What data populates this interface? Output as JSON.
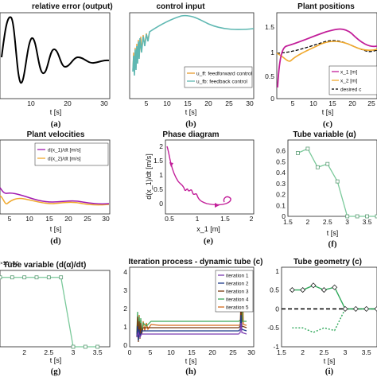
{
  "panels": [
    {
      "id": "a",
      "title": "relative error (output)",
      "xlabel": "t [s]",
      "ylabel": "",
      "label": "(a)",
      "xticks": [
        "10",
        "20",
        "30"
      ],
      "yticks": [],
      "xlim": [
        0,
        30
      ],
      "ylim": [
        -1,
        1
      ]
    },
    {
      "id": "b",
      "title": "control input",
      "xlabel": "t [s]",
      "ylabel": "",
      "label": "(b)",
      "xticks": [
        "5",
        "10",
        "15",
        "20",
        "25",
        "30"
      ],
      "yticks": [],
      "xlim": [
        0,
        30
      ],
      "ylim": [
        -1,
        1
      ],
      "legend": [
        "u_ff: feedforward control",
        "u_fb: feedback control"
      ]
    },
    {
      "id": "c",
      "title": "Plant positions",
      "xlabel": "t [s]",
      "ylabel": "",
      "label": "(c)",
      "xticks": [
        "5",
        "10",
        "15",
        "20",
        "25"
      ],
      "yticks": [
        "1.5",
        "1",
        "0.5",
        "0"
      ],
      "xlim": [
        0,
        28
      ],
      "ylim": [
        0,
        1.8
      ],
      "legend": [
        "x_1 [m]",
        "x_2 [m]",
        "desired c"
      ]
    },
    {
      "id": "d",
      "title": "Plant velocities",
      "xlabel": "t [s]",
      "ylabel": "",
      "label": "(d)",
      "xticks": [
        "5",
        "10",
        "15",
        "20",
        "25",
        "30"
      ],
      "yticks": [],
      "xlim": [
        2,
        30
      ],
      "ylim": [
        -1,
        1
      ],
      "legend": [
        "d(x_1)/dt [m/s]",
        "d(x_2)/dt [m/s]"
      ]
    },
    {
      "id": "e",
      "title": "Phase diagram",
      "xlabel": "x_1 [m]",
      "ylabel": "d(x_1)/dt [m/s]",
      "label": "(e)",
      "xticks": [
        "0.5",
        "1",
        "1.5",
        "2"
      ],
      "yticks": [
        "2",
        "1.5",
        "1",
        "0.5",
        "0"
      ],
      "xlim": [
        0.5,
        2
      ],
      "ylim": [
        -0.2,
        2.5
      ]
    },
    {
      "id": "f",
      "title": "Tube variable (α)",
      "xlabel": "t [s]",
      "ylabel": "",
      "label": "(f)",
      "xticks": [
        "1.5",
        "2",
        "2.5",
        "3",
        "3.5"
      ],
      "yticks": [
        "0.6",
        "0.5",
        "0.4",
        "0.3",
        "0.2",
        "0.1",
        "0"
      ],
      "xlim": [
        1.5,
        3.75
      ],
      "ylim": [
        0,
        0.7
      ]
    },
    {
      "id": "g",
      "title": "Tube variable (d(α)/dt)",
      "xlabel": "t [s]",
      "ylabel": "",
      "label": "(g)",
      "xticks": [
        "2",
        "2.5",
        "3",
        "3.5"
      ],
      "yticks": [],
      "xlim": [
        1.5,
        3.75
      ],
      "ylim": [
        -1,
        0.1
      ],
      "exponent": "×10^-10"
    },
    {
      "id": "h",
      "title": "Iteration process - dynamic tube (c)",
      "xlabel": "t [s]",
      "ylabel": "",
      "label": "(h)",
      "xticks": [
        "0",
        "5",
        "10",
        "15",
        "20",
        "25",
        "30"
      ],
      "yticks": [
        "4",
        "3",
        "2",
        "1",
        "0"
      ],
      "xlim": [
        0,
        30
      ],
      "ylim": [
        0,
        4
      ],
      "legend": [
        "iteration 1",
        "iteration 2",
        "iteration 3",
        "iteration 4",
        "iteration 5"
      ]
    },
    {
      "id": "i",
      "title": "Tube geometry (c)",
      "xlabel": "t [s]",
      "ylabel": "",
      "label": "(i)",
      "xticks": [
        "1.5",
        "2",
        "2.5",
        "3",
        "3.5"
      ],
      "yticks": [
        "1",
        "0.5",
        "0",
        "-0.5",
        "-1"
      ],
      "xlim": [
        1.5,
        3.75
      ],
      "ylim": [
        -1,
        1.1
      ]
    }
  ],
  "chart_data": [
    {
      "type": "line",
      "panel": "f",
      "title": "Tube variable (α)",
      "xlabel": "t [s]",
      "series": [
        {
          "values_x": [
            1.75,
            2.0,
            2.25,
            2.5,
            2.75,
            3.0,
            3.25,
            3.5,
            3.75
          ],
          "values_y": [
            0.58,
            0.62,
            0.45,
            0.48,
            0.32,
            0.0,
            0.0,
            0.0,
            0.0
          ]
        }
      ],
      "ylim": [
        0,
        0.7
      ],
      "xlim": [
        1.5,
        3.75
      ]
    },
    {
      "type": "line",
      "panel": "g",
      "title": "Tube variable (d(α)/dt)",
      "xlabel": "t [s]",
      "series": [
        {
          "values_x": [
            1.5,
            1.75,
            2.0,
            2.25,
            2.5,
            2.75,
            3.0,
            3.25,
            3.5
          ],
          "values_y": [
            0,
            0,
            0,
            0,
            0,
            0,
            -1,
            -1,
            -1
          ]
        }
      ],
      "ylim": [
        -1,
        0.1
      ],
      "xlim": [
        1.5,
        3.75
      ]
    },
    {
      "type": "line",
      "panel": "i",
      "title": "Tube geometry (c)",
      "xlabel": "t [s]",
      "series": [
        {
          "values_x": [
            1.75,
            2.0,
            2.25,
            2.5,
            2.75,
            3.0,
            3.25,
            3.5,
            3.75
          ],
          "values_y": [
            0.5,
            0.5,
            0.62,
            0.5,
            0.57,
            0.0,
            0.0,
            0.0,
            0.0
          ]
        },
        {
          "values_x": [
            1.75,
            2.0,
            2.25,
            2.5,
            2.75,
            3.0,
            3.25,
            3.5,
            3.75
          ],
          "values_y": [
            -0.5,
            -0.5,
            -0.62,
            -0.5,
            -0.57,
            0.0,
            0.0,
            0.0,
            0.0
          ]
        },
        {
          "values_x": [
            1.5,
            3.75
          ],
          "values_y": [
            0,
            0
          ]
        }
      ],
      "ylim": [
        -1,
        1.1
      ],
      "xlim": [
        1.5,
        3.75
      ]
    },
    {
      "type": "line",
      "panel": "c",
      "title": "Plant positions",
      "xlabel": "t [s]",
      "series": [
        {
          "name": "x_1 [m]",
          "values_x": [
            0,
            1,
            3,
            6,
            10,
            15,
            20,
            25,
            28
          ],
          "values_y": [
            0.3,
            1.0,
            1.2,
            1.3,
            1.45,
            1.7,
            1.4,
            1.15,
            1.2
          ]
        },
        {
          "name": "x_2 [m]",
          "values_x": [
            0,
            2,
            4,
            6,
            10,
            15,
            20,
            25,
            28
          ],
          "values_y": [
            1.0,
            0.88,
            1.0,
            1.05,
            1.2,
            1.35,
            1.2,
            1.05,
            1.05
          ]
        },
        {
          "name": "desired c",
          "values_x": [
            0,
            5,
            10,
            15,
            20,
            25,
            28
          ],
          "values_y": [
            1.0,
            1.05,
            1.2,
            1.35,
            1.2,
            1.05,
            1.05
          ]
        }
      ],
      "ylim": [
        0,
        1.8
      ],
      "xlim": [
        0,
        28
      ]
    }
  ]
}
